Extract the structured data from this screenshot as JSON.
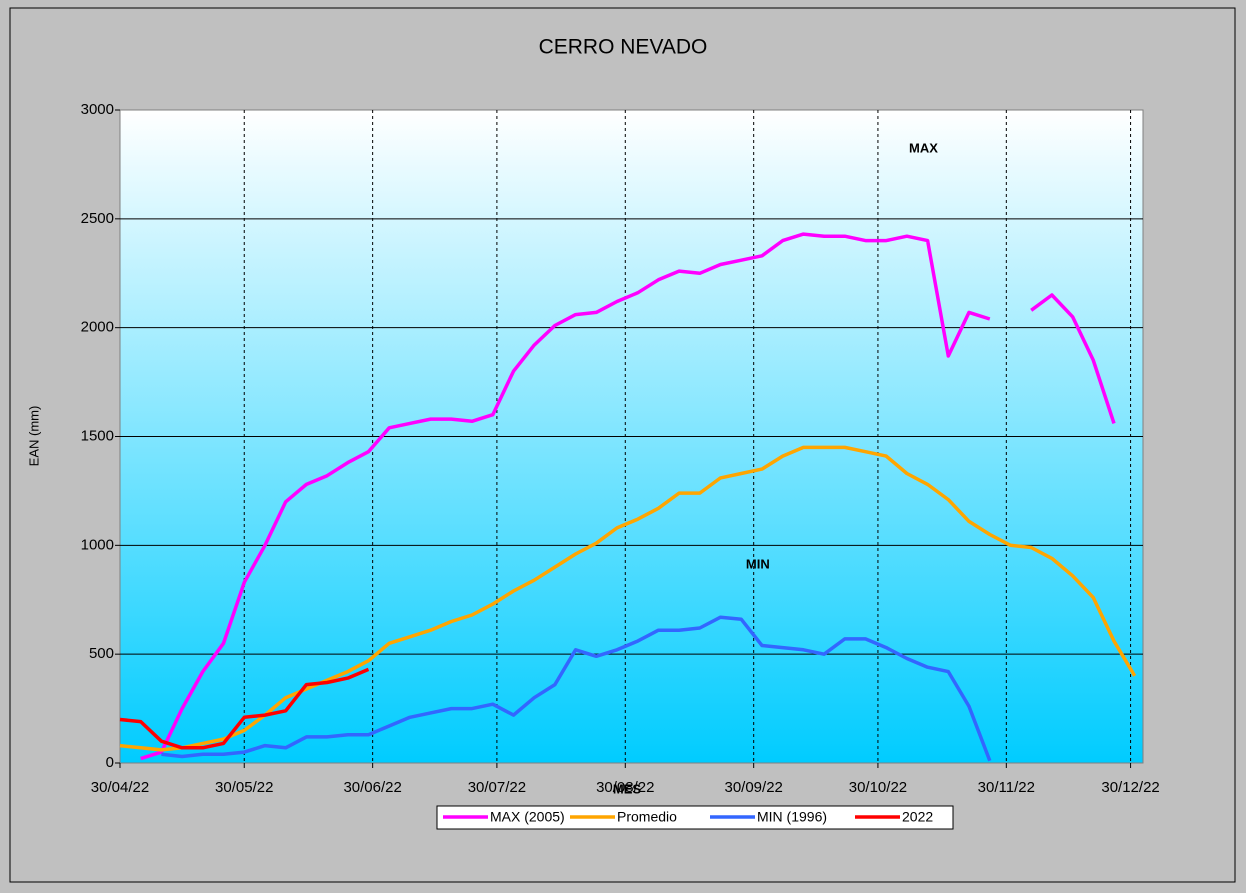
{
  "chart_data": {
    "type": "line",
    "title": "CERRO NEVADO",
    "x_label": "MES",
    "y_label": "EAN (mm)",
    "annotations": [
      {
        "text": "MAX",
        "x": "2022-11-10",
        "y": 2820,
        "color": "#ff00ff"
      },
      {
        "text": "MIN",
        "x": "2022-10-01",
        "y": 910,
        "color": "#3333ff"
      }
    ],
    "x": [
      "2022-04-30",
      "2022-05-05",
      "2022-05-10",
      "2022-05-15",
      "2022-05-20",
      "2022-05-25",
      "2022-05-30",
      "2022-06-04",
      "2022-06-09",
      "2022-06-14",
      "2022-06-19",
      "2022-06-24",
      "2022-06-29",
      "2022-07-04",
      "2022-07-09",
      "2022-07-14",
      "2022-07-19",
      "2022-07-24",
      "2022-07-29",
      "2022-08-03",
      "2022-08-08",
      "2022-08-13",
      "2022-08-18",
      "2022-08-23",
      "2022-08-28",
      "2022-09-02",
      "2022-09-07",
      "2022-09-12",
      "2022-09-17",
      "2022-09-22",
      "2022-09-27",
      "2022-10-02",
      "2022-10-07",
      "2022-10-12",
      "2022-10-17",
      "2022-10-22",
      "2022-10-27",
      "2022-11-01",
      "2022-11-06",
      "2022-11-11",
      "2022-11-16",
      "2022-11-21",
      "2022-11-26",
      "2022-12-01",
      "2022-12-06",
      "2022-12-11",
      "2022-12-16",
      "2022-12-21",
      "2022-12-26",
      "2022-12-31"
    ],
    "series": [
      {
        "name": "MAX (2005)",
        "color": "#ff00ff",
        "values": [
          null,
          20,
          50,
          250,
          420,
          550,
          830,
          1000,
          1200,
          1280,
          1320,
          1380,
          1430,
          1540,
          1560,
          1580,
          1580,
          1570,
          1600,
          1800,
          1920,
          2010,
          2060,
          2070,
          2120,
          2160,
          2220,
          2260,
          2250,
          2290,
          2310,
          2330,
          2400,
          2430,
          2420,
          2420,
          2400,
          2400,
          2420,
          2400,
          1870,
          2070,
          2040,
          null,
          2080,
          2150,
          2050,
          1850,
          1560,
          null
        ]
      },
      {
        "name": "Promedio",
        "color": "#ffa500",
        "values": [
          80,
          70,
          60,
          70,
          90,
          110,
          150,
          220,
          300,
          340,
          380,
          420,
          470,
          550,
          580,
          610,
          650,
          680,
          730,
          790,
          840,
          900,
          960,
          1010,
          1080,
          1120,
          1170,
          1240,
          1240,
          1310,
          1330,
          1350,
          1410,
          1450,
          1450,
          1450,
          1430,
          1410,
          1330,
          1280,
          1210,
          1110,
          1050,
          1000,
          990,
          940,
          860,
          760,
          560,
          400
        ]
      },
      {
        "name": "MIN (1996)",
        "color": "#3366ff",
        "values": [
          null,
          null,
          40,
          30,
          40,
          40,
          50,
          80,
          70,
          120,
          120,
          130,
          130,
          170,
          210,
          230,
          250,
          250,
          270,
          220,
          300,
          360,
          520,
          490,
          520,
          560,
          610,
          610,
          620,
          670,
          660,
          540,
          530,
          520,
          500,
          570,
          570,
          530,
          480,
          440,
          420,
          260,
          10,
          null,
          null,
          null,
          null,
          null,
          null,
          null
        ]
      },
      {
        "name": "2022",
        "color": "#ff0000",
        "values": [
          200,
          190,
          100,
          70,
          70,
          90,
          210,
          220,
          240,
          360,
          370,
          390,
          430,
          null,
          null,
          null,
          null,
          null,
          null,
          null,
          null,
          null,
          null,
          null,
          null,
          null,
          null,
          null,
          null,
          null,
          null,
          null,
          null,
          null,
          null,
          null,
          null,
          null,
          null,
          null,
          null,
          null,
          null,
          null,
          null,
          null,
          null,
          null,
          null,
          null
        ]
      }
    ],
    "xlim": [
      "2022-04-30",
      "2023-01-02"
    ],
    "xticks": [
      {
        "value": "2022-04-30",
        "label": "30/04/22"
      },
      {
        "value": "2022-05-30",
        "label": "30/05/22"
      },
      {
        "value": "2022-06-30",
        "label": "30/06/22"
      },
      {
        "value": "2022-07-30",
        "label": "30/07/22"
      },
      {
        "value": "2022-08-30",
        "label": "30/08/22"
      },
      {
        "value": "2022-09-30",
        "label": "30/09/22"
      },
      {
        "value": "2022-10-30",
        "label": "30/10/22"
      },
      {
        "value": "2022-11-30",
        "label": "30/11/22"
      },
      {
        "value": "2022-12-30",
        "label": "30/12/22"
      }
    ],
    "ylim": [
      0,
      3000
    ],
    "yticks": [
      0,
      500,
      1000,
      1500,
      2000,
      2500,
      3000
    ],
    "grid": true,
    "legend": "bottom"
  }
}
